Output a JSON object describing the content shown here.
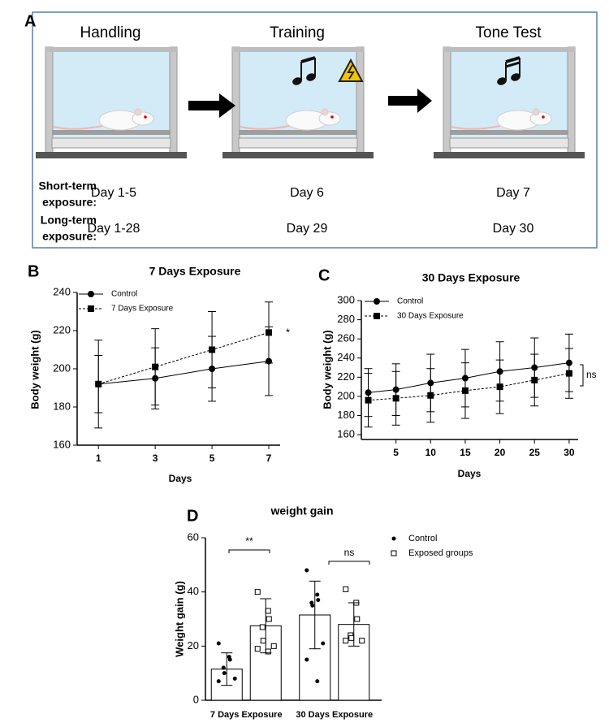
{
  "panel_a": {
    "panel_label": "A",
    "stages": [
      "Handling",
      "Training",
      "Tone Test"
    ],
    "rows": [
      {
        "label_lines": [
          "Short-term",
          "exposure:"
        ],
        "days": [
          "Day 1-5",
          "Day 6",
          "Day 7"
        ]
      },
      {
        "label_lines": [
          "Long-term",
          "exposure:"
        ],
        "days": [
          "Day 1-28",
          "Day 29",
          "Day 30"
        ]
      }
    ]
  },
  "chart_data": [
    {
      "type": "line",
      "panel_label": "B",
      "title": "7 Days Exposure",
      "x_label": "Days",
      "y_label": "Body weight (g)",
      "x": [
        1,
        3,
        5,
        7
      ],
      "xlim": [
        0.25,
        7.4
      ],
      "xticks": [
        1,
        3,
        5,
        7
      ],
      "ylim": [
        160,
        240
      ],
      "yticks": [
        160,
        180,
        200,
        220,
        240
      ],
      "series": [
        {
          "name": "Control",
          "color": "#000000",
          "marker": "circle",
          "line_style": "solid",
          "values": [
            192,
            195,
            200,
            204
          ],
          "errors": [
            23,
            16,
            17,
            18
          ]
        },
        {
          "name": "7 Days Exposure",
          "color": "#000000",
          "marker": "square",
          "line_style": "dashed",
          "values": [
            192,
            201,
            210,
            219
          ],
          "errors": [
            15,
            20,
            20,
            16
          ]
        }
      ],
      "annotations": [
        "*"
      ]
    },
    {
      "type": "line",
      "panel_label": "C",
      "title": "30 Days Exposure",
      "x_label": "Days",
      "y_label": "Body weight (g)",
      "x": [
        1,
        5,
        10,
        15,
        20,
        25,
        30
      ],
      "xlim": [
        0,
        31.3
      ],
      "xticks": [
        5,
        10,
        15,
        20,
        25,
        30
      ],
      "ylim": [
        155,
        300
      ],
      "yticks": [
        160,
        180,
        200,
        220,
        240,
        260,
        280,
        300
      ],
      "series": [
        {
          "name": "Control",
          "color": "#000000",
          "marker": "circle",
          "line_style": "solid",
          "values": [
            204,
            207,
            214,
            219,
            226,
            230,
            235
          ],
          "errors": [
            25,
            27,
            30,
            30,
            31,
            31,
            30
          ]
        },
        {
          "name": "30 Days Exposure",
          "color": "#000000",
          "marker": "square",
          "line_style": "dashed",
          "values": [
            196,
            198,
            201,
            206,
            210,
            217,
            224
          ],
          "errors": [
            28,
            28,
            28,
            29,
            28,
            27,
            26
          ]
        }
      ],
      "annotations": [
        "ns"
      ]
    },
    {
      "type": "bar",
      "panel_label": "D",
      "title": "weight gain",
      "y_label": "Weight gain (g)",
      "categories": [
        "7 Days Exposure",
        "30 Days Exposure"
      ],
      "ylim": [
        0,
        60
      ],
      "yticks": [
        0,
        20,
        40,
        60
      ],
      "series": [
        {
          "name": "Control",
          "color": "#000000",
          "marker": "dot",
          "values": [
            11.5,
            31.5
          ],
          "errors": [
            6,
            12.5
          ],
          "points": [
            [
              21,
              16,
              15,
              12,
              10,
              8,
              7
            ],
            [
              48,
              39,
              37,
              36,
              35,
              21,
              15,
              7
            ]
          ]
        },
        {
          "name": "Exposed groups",
          "color": "#000000",
          "marker": "open-square",
          "values": [
            27.5,
            28
          ],
          "errors": [
            10,
            8
          ],
          "points": [
            [
              40,
              33,
              30,
              27,
              22,
              20,
              19,
              18
            ],
            [
              41,
              36,
              30,
              24,
              23,
              22,
              22
            ]
          ]
        }
      ],
      "annotations": [
        "**",
        "ns"
      ]
    }
  ]
}
